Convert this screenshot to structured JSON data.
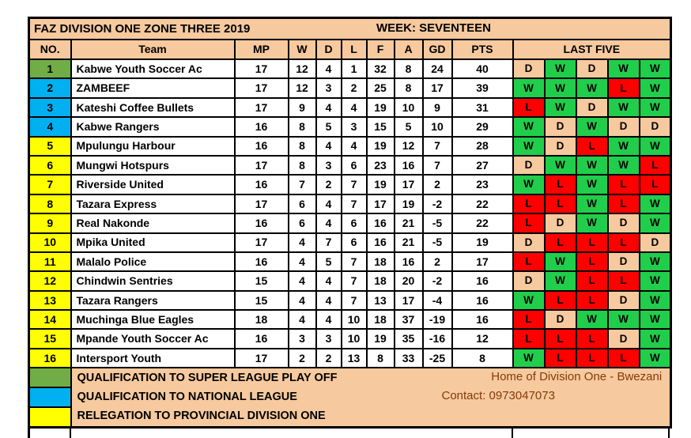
{
  "title": "FAZ DIVISION ONE ZONE THREE 2019",
  "week": "WEEK: SEVENTEEN",
  "columns": [
    "NO.",
    "Team",
    "MP",
    "W",
    "D",
    "L",
    "F",
    "A",
    "GD",
    "PTS",
    "LAST FIVE"
  ],
  "colors": {
    "header_bg": "#F6C99E",
    "border": "#000000",
    "win": "#21CE4B",
    "draw": "#F6C99E",
    "loss": "#FF0000",
    "no_green": "#70AD47",
    "no_blue": "#00B0F0",
    "no_yellow": "#FFFF00",
    "maroon_text": "#833C0B",
    "cell_bg": "#FFFFFF"
  },
  "rows": [
    {
      "no": "1",
      "no_color": "green",
      "team": "Kabwe Youth Soccer Ac",
      "mp": "17",
      "w": "12",
      "d": "4",
      "l": "1",
      "f": "32",
      "a": "8",
      "gd": "24",
      "pts": "40",
      "last_five": [
        "D",
        "W",
        "D",
        "W",
        "W"
      ]
    },
    {
      "no": "2",
      "no_color": "blue",
      "team": "ZAMBEEF",
      "mp": "17",
      "w": "12",
      "d": "3",
      "l": "2",
      "f": "25",
      "a": "8",
      "gd": "17",
      "pts": "39",
      "last_five": [
        "W",
        "W",
        "W",
        "L",
        "W"
      ]
    },
    {
      "no": "3",
      "no_color": "blue",
      "team": "Kateshi Coffee Bullets",
      "mp": "17",
      "w": "9",
      "d": "4",
      "l": "4",
      "f": "19",
      "a": "10",
      "gd": "9",
      "pts": "31",
      "last_five": [
        "L",
        "W",
        "D",
        "W",
        "W"
      ]
    },
    {
      "no": "4",
      "no_color": "blue",
      "team": "Kabwe Rangers",
      "mp": "16",
      "w": "8",
      "d": "5",
      "l": "3",
      "f": "15",
      "a": "5",
      "gd": "10",
      "pts": "29",
      "last_five": [
        "W",
        "D",
        "W",
        "D",
        "D"
      ]
    },
    {
      "no": "5",
      "no_color": "yellow",
      "team": "Mpulungu Harbour",
      "mp": "16",
      "w": "8",
      "d": "4",
      "l": "4",
      "f": "19",
      "a": "12",
      "gd": "7",
      "pts": "28",
      "last_five": [
        "W",
        "D",
        "L",
        "W",
        "W"
      ]
    },
    {
      "no": "6",
      "no_color": "yellow",
      "team": "Mungwi Hotspurs",
      "mp": "17",
      "w": "8",
      "d": "3",
      "l": "6",
      "f": "23",
      "a": "16",
      "gd": "7",
      "pts": "27",
      "last_five": [
        "D",
        "W",
        "W",
        "W",
        "L"
      ]
    },
    {
      "no": "7",
      "no_color": "yellow",
      "team": "Riverside United",
      "mp": "16",
      "w": "7",
      "d": "2",
      "l": "7",
      "f": "19",
      "a": "17",
      "gd": "2",
      "pts": "23",
      "last_five": [
        "W",
        "L",
        "W",
        "L",
        "L"
      ]
    },
    {
      "no": "8",
      "no_color": "yellow",
      "team": "Tazara Express",
      "mp": "17",
      "w": "6",
      "d": "4",
      "l": "7",
      "f": "17",
      "a": "19",
      "gd": "-2",
      "pts": "22",
      "last_five": [
        "L",
        "L",
        "W",
        "L",
        "W"
      ]
    },
    {
      "no": "9",
      "no_color": "yellow",
      "team": "Real Nakonde",
      "mp": "16",
      "w": "6",
      "d": "4",
      "l": "6",
      "f": "16",
      "a": "21",
      "gd": "-5",
      "pts": "22",
      "last_five": [
        "L",
        "D",
        "W",
        "D",
        "W"
      ]
    },
    {
      "no": "10",
      "no_color": "yellow",
      "team": "Mpika United",
      "mp": "17",
      "w": "4",
      "d": "7",
      "l": "6",
      "f": "16",
      "a": "21",
      "gd": "-5",
      "pts": "19",
      "last_five": [
        "D",
        "L",
        "L",
        "L",
        "D"
      ]
    },
    {
      "no": "11",
      "no_color": "yellow",
      "team": "Malalo Police",
      "mp": "16",
      "w": "4",
      "d": "5",
      "l": "7",
      "f": "18",
      "a": "16",
      "gd": "2",
      "pts": "17",
      "last_five": [
        "L",
        "W",
        "L",
        "D",
        "W"
      ]
    },
    {
      "no": "12",
      "no_color": "yellow",
      "team": "Chindwin Sentries",
      "mp": "15",
      "w": "4",
      "d": "4",
      "l": "7",
      "f": "18",
      "a": "20",
      "gd": "-2",
      "pts": "16",
      "last_five": [
        "D",
        "W",
        "L",
        "L",
        "W"
      ]
    },
    {
      "no": "13",
      "no_color": "yellow",
      "team": "Tazara Rangers",
      "mp": "15",
      "w": "4",
      "d": "4",
      "l": "7",
      "f": "13",
      "a": "17",
      "gd": "-4",
      "pts": "16",
      "last_five": [
        "W",
        "L",
        "L",
        "D",
        "W"
      ]
    },
    {
      "no": "14",
      "no_color": "yellow",
      "team": "Muchinga Blue Eagles",
      "mp": "18",
      "w": "4",
      "d": "4",
      "l": "10",
      "f": "18",
      "a": "37",
      "gd": "-19",
      "pts": "16",
      "last_five": [
        "L",
        "D",
        "W",
        "W",
        "W"
      ]
    },
    {
      "no": "15",
      "no_color": "yellow",
      "team": "Mpande Youth Soccer Ac",
      "mp": "16",
      "w": "3",
      "d": "3",
      "l": "10",
      "f": "19",
      "a": "35",
      "gd": "-16",
      "pts": "12",
      "last_five": [
        "L",
        "L",
        "L",
        "D",
        "W"
      ]
    },
    {
      "no": "16",
      "no_color": "yellow",
      "team": "Intersport Youth",
      "mp": "17",
      "w": "2",
      "d": "2",
      "l": "13",
      "f": "8",
      "a": "33",
      "gd": "-25",
      "pts": "8",
      "last_five": [
        "W",
        "L",
        "L",
        "L",
        "W"
      ]
    }
  ],
  "legend": [
    {
      "swatch_color": "green",
      "label": "QUALIFICATION TO SUPER LEAGUE PLAY OFF"
    },
    {
      "swatch_color": "blue",
      "label": "QUALIFICATION TO NATIONAL LEAGUE"
    },
    {
      "swatch_color": "yellow",
      "label": "RELEGATION  TO PROVINCIAL DIVISION ONE"
    }
  ],
  "footer_right": {
    "line1": "Home of Division One - Bwezani",
    "line2": "Contact: 0973047073"
  }
}
